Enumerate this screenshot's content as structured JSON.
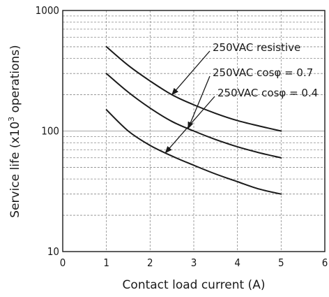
{
  "chart_data": {
    "type": "line",
    "xlabel": "Contact load current (A)",
    "ylabel_prefix": "Service life (x10",
    "ylabel_sup": "3",
    "ylabel_suffix": " operations)",
    "xlim": [
      0,
      6
    ],
    "ylim": [
      10,
      1000
    ],
    "yscale": "log",
    "grid": true,
    "x_ticks": [
      "0",
      "1",
      "2",
      "3",
      "4",
      "5",
      "6"
    ],
    "y_ticks": [
      "10",
      "100",
      "1000"
    ],
    "series": [
      {
        "name": "250VAC  resistive",
        "x": [
          1,
          1.5,
          2,
          2.5,
          3,
          3.5,
          4,
          4.5,
          5
        ],
        "values": [
          500,
          350,
          260,
          200,
          165,
          140,
          122,
          110,
          100
        ]
      },
      {
        "name": "250VAC  cosφ = 0.7",
        "x": [
          1,
          1.5,
          2,
          2.5,
          3,
          3.5,
          4,
          4.5,
          5
        ],
        "values": [
          300,
          210,
          155,
          120,
          100,
          85,
          74,
          66,
          60
        ]
      },
      {
        "name": "250VAC  cosφ = 0.4",
        "x": [
          1,
          1.5,
          2,
          2.5,
          3,
          3.5,
          4,
          4.5,
          5
        ],
        "values": [
          150,
          100,
          76,
          62,
          52,
          44,
          38,
          33,
          30
        ]
      }
    ]
  }
}
